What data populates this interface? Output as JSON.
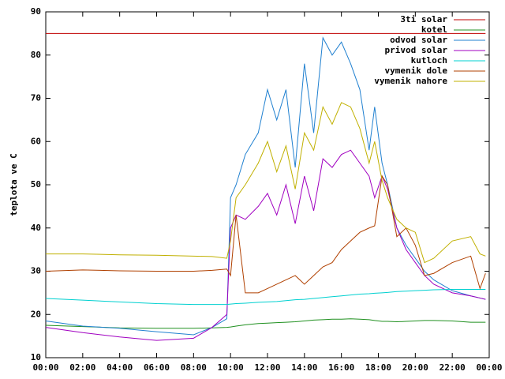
{
  "chart_data": {
    "type": "line",
    "ylabel": "teplota ve C",
    "x": [
      0,
      2,
      4,
      6,
      8,
      9,
      9.8,
      10,
      10.3,
      10.8,
      11.5,
      12,
      12.5,
      13,
      13.5,
      14,
      14.5,
      15,
      15.5,
      16,
      16.5,
      17,
      17.5,
      17.8,
      18.2,
      18.5,
      19,
      19.5,
      20,
      20.5,
      21,
      22,
      23,
      23.5,
      23.8
    ],
    "xlim": [
      0,
      24
    ],
    "xticks": [
      {
        "value": 0,
        "label": "00:00"
      },
      {
        "value": 2,
        "label": "02:00"
      },
      {
        "value": 4,
        "label": "04:00"
      },
      {
        "value": 6,
        "label": "06:00"
      },
      {
        "value": 8,
        "label": "08:00"
      },
      {
        "value": 10,
        "label": "10:00"
      },
      {
        "value": 12,
        "label": "12:00"
      },
      {
        "value": 14,
        "label": "14:00"
      },
      {
        "value": 16,
        "label": "16:00"
      },
      {
        "value": 18,
        "label": "18:00"
      },
      {
        "value": 20,
        "label": "20:00"
      },
      {
        "value": 22,
        "label": "22:00"
      },
      {
        "value": 24,
        "label": "00:00"
      }
    ],
    "ylim": [
      10,
      90
    ],
    "yticks": [
      10,
      20,
      30,
      40,
      50,
      60,
      70,
      80,
      90
    ],
    "legend": "top-right",
    "series": [
      {
        "name": "3ti solar",
        "color": "#c00000",
        "values": [
          85,
          85,
          85,
          85,
          85,
          85,
          85,
          85,
          85,
          85,
          85,
          85,
          85,
          85,
          85,
          85,
          85,
          85,
          85,
          85,
          85,
          85,
          85,
          85,
          85,
          85,
          85,
          85,
          85,
          85,
          85,
          85,
          85,
          85,
          85
        ]
      },
      {
        "name": "kotel",
        "color": "#209020",
        "values": [
          17.5,
          17.2,
          16.9,
          16.8,
          16.8,
          16.9,
          17,
          17.1,
          17.3,
          17.6,
          17.9,
          18,
          18.1,
          18.2,
          18.3,
          18.5,
          18.7,
          18.8,
          18.9,
          18.9,
          19,
          18.9,
          18.8,
          18.6,
          18.4,
          18.4,
          18.3,
          18.4,
          18.5,
          18.6,
          18.6,
          18.5,
          18.2,
          18.2,
          18.2
        ]
      },
      {
        "name": "odvod solar",
        "color": "#2080d0",
        "values": [
          18.5,
          17.3,
          16.8,
          16,
          15.3,
          17,
          19,
          47,
          50,
          57,
          62,
          72,
          65,
          72,
          54,
          78,
          62,
          84,
          80,
          83,
          78,
          72,
          58,
          68,
          55,
          50,
          40,
          36,
          33,
          30,
          28,
          25.5,
          24.3,
          23.8,
          23.5
        ]
      },
      {
        "name": "privod solar",
        "color": "#a000c0",
        "values": [
          17,
          15.8,
          14.8,
          14,
          14.5,
          17,
          20,
          40,
          43,
          42,
          45,
          48,
          43,
          50,
          41,
          52,
          44,
          56,
          54,
          57,
          58,
          55,
          52,
          47,
          52,
          49,
          40,
          35,
          32,
          29,
          27,
          25,
          24.3,
          23.8,
          23.5
        ]
      },
      {
        "name": "kutloch",
        "color": "#00d0d0",
        "values": [
          23.7,
          23.3,
          22.9,
          22.5,
          22.3,
          22.3,
          22.3,
          22.4,
          22.5,
          22.6,
          22.8,
          22.9,
          23,
          23.2,
          23.4,
          23.5,
          23.7,
          23.9,
          24.1,
          24.3,
          24.5,
          24.7,
          24.8,
          24.9,
          25,
          25.1,
          25.3,
          25.4,
          25.5,
          25.6,
          25.7,
          25.8,
          25.8,
          25.8,
          25.8
        ]
      },
      {
        "name": "vymenik dole",
        "color": "#b04000",
        "values": [
          30,
          30.3,
          30.1,
          30,
          30,
          30.2,
          30.5,
          29,
          43,
          25,
          25,
          26,
          27,
          28,
          29,
          27,
          29,
          31,
          32,
          35,
          37,
          39,
          40,
          40.5,
          52,
          50,
          38,
          40,
          36,
          29,
          29.5,
          32,
          33.5,
          26,
          29.5
        ]
      },
      {
        "name": "vymenik nahore",
        "color": "#c0b000",
        "values": [
          34,
          34,
          33.8,
          33.7,
          33.5,
          33.4,
          33,
          37,
          47,
          50,
          55,
          60,
          53,
          59,
          49,
          62,
          58,
          68,
          64,
          69,
          68,
          63,
          55,
          60,
          51,
          47,
          42,
          40,
          39,
          32,
          33,
          37,
          38,
          34,
          33.5
        ]
      }
    ]
  }
}
